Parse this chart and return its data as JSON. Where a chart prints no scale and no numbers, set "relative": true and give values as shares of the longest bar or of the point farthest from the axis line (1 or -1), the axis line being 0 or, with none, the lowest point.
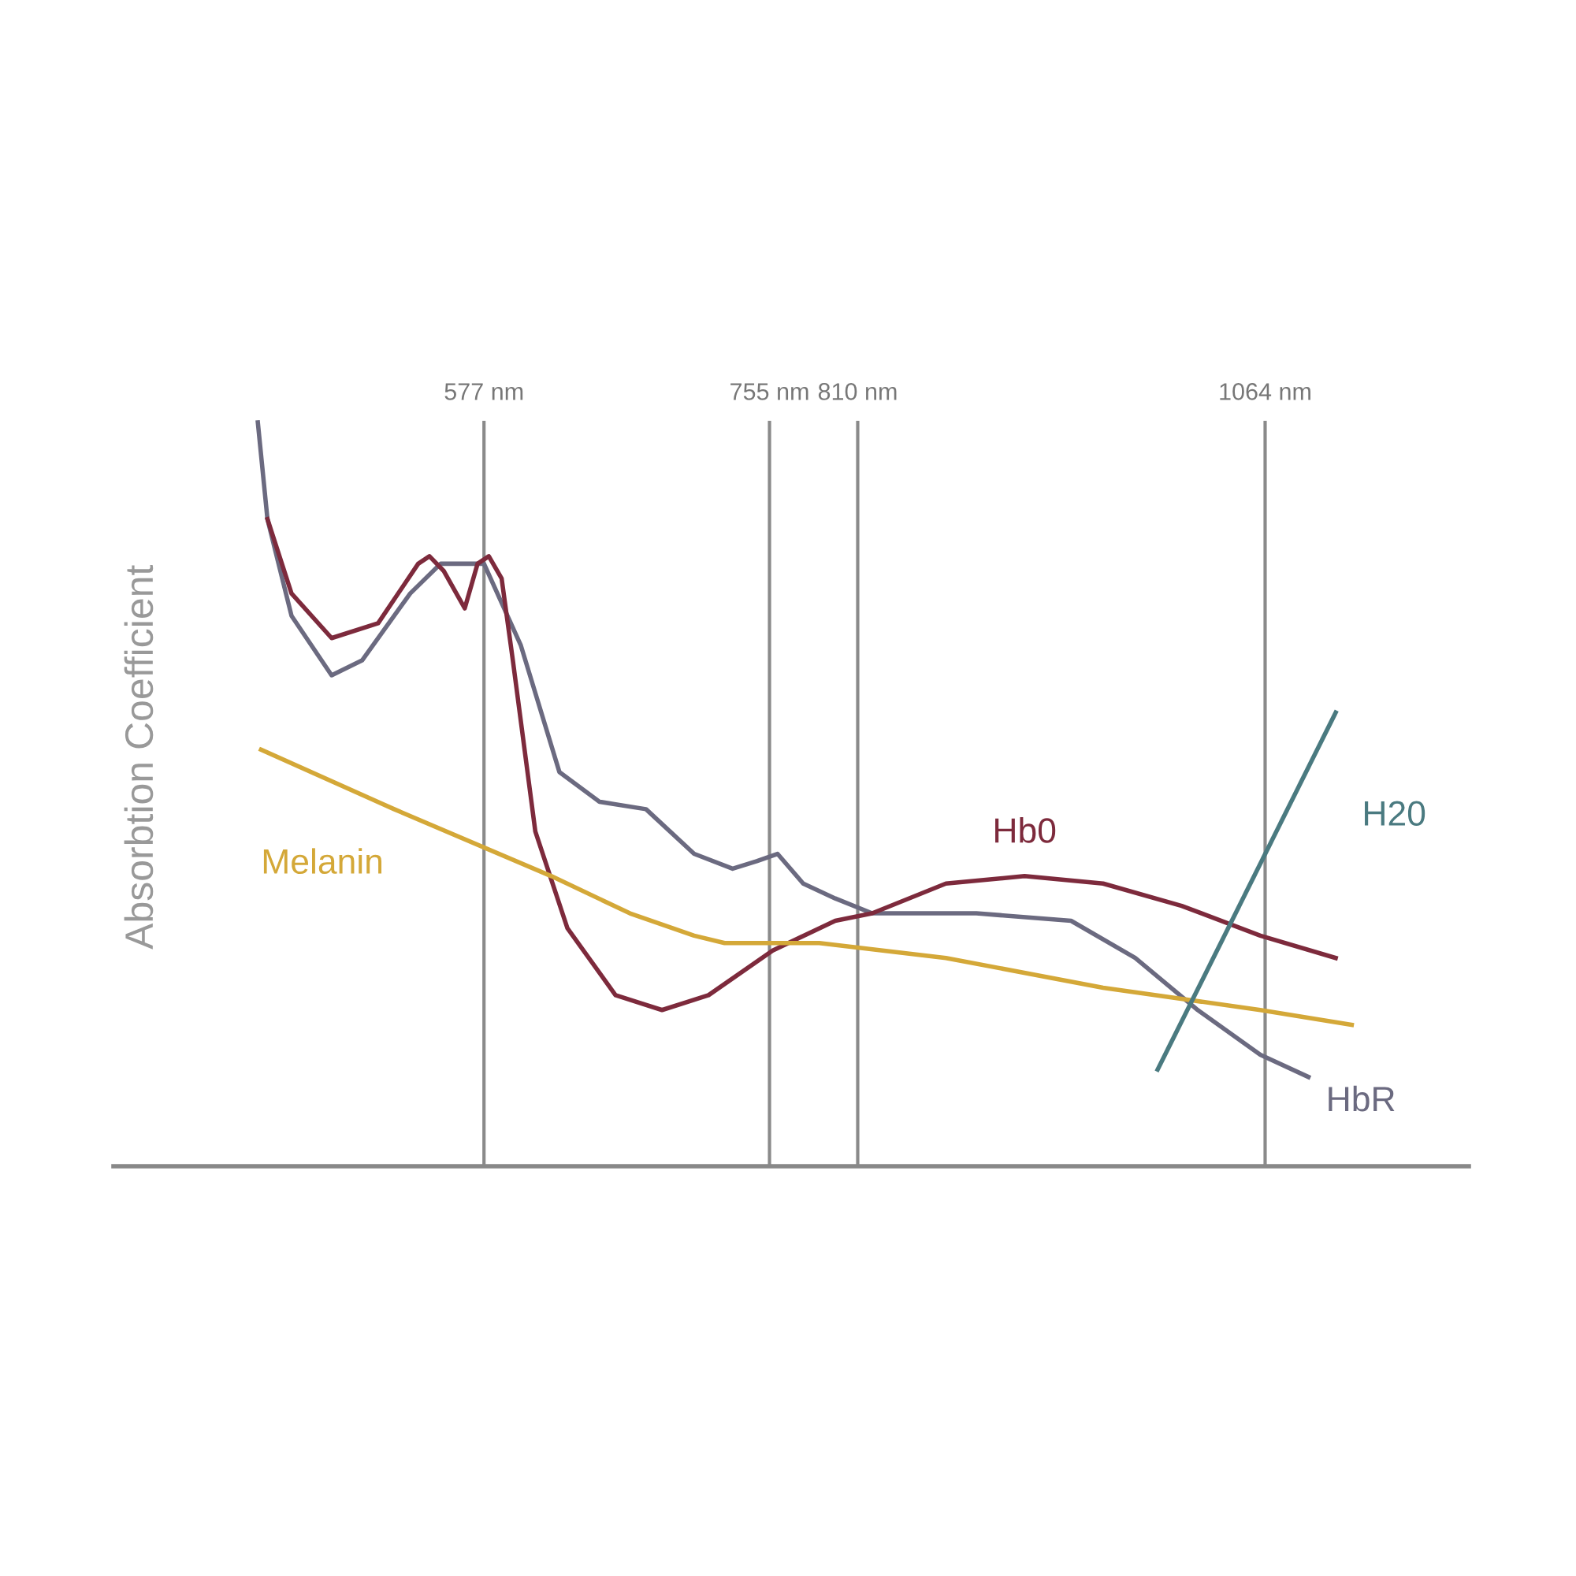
{
  "chart_data": {
    "type": "line",
    "relative": true,
    "ylabel": "Absorbtion Coefficient",
    "xlim": [
      346,
      1191
    ],
    "xticks": [
      {
        "value": 577,
        "label": "577 nm"
      },
      {
        "value": 755,
        "label": "755 nm"
      },
      {
        "value": 810,
        "label": "810 nm"
      },
      {
        "value": 1064,
        "label": "1064 nm"
      }
    ],
    "tick_labels": "x",
    "legend": false,
    "series": [
      {
        "name": "HbR",
        "color": "#6b6a80",
        "x": [
          436,
          442,
          457,
          482,
          501,
          531,
          550,
          577,
          600,
          624,
          649,
          678,
          708,
          732,
          747,
          760,
          776,
          796,
          819,
          840,
          884,
          943,
          983,
          1022,
          1061,
          1091
        ],
        "values": [
          1.0,
          0.87,
          0.74,
          0.66,
          0.68,
          0.77,
          0.81,
          0.81,
          0.7,
          0.53,
          0.49,
          0.48,
          0.42,
          0.4,
          0.41,
          0.42,
          0.38,
          0.36,
          0.34,
          0.34,
          0.34,
          0.33,
          0.28,
          0.21,
          0.15,
          0.12
        ]
      },
      {
        "name": "Hb0",
        "color": "#7d2a3c",
        "x": [
          442,
          457,
          482,
          511,
          536,
          543,
          552,
          565,
          573,
          580,
          588,
          595,
          609,
          629,
          659,
          688,
          717,
          757,
          796,
          819,
          865,
          914,
          963,
          1012,
          1061,
          1108
        ],
        "values": [
          0.87,
          0.77,
          0.71,
          0.73,
          0.81,
          0.82,
          0.8,
          0.75,
          0.81,
          0.82,
          0.79,
          0.68,
          0.45,
          0.32,
          0.23,
          0.21,
          0.23,
          0.29,
          0.33,
          0.34,
          0.38,
          0.39,
          0.38,
          0.35,
          0.31,
          0.28
        ]
      },
      {
        "name": "Melanin",
        "color": "#d4a838",
        "x": [
          438,
          521,
          619,
          668,
          708,
          727,
          786,
          865,
          963,
          1061,
          1118
        ],
        "values": [
          0.56,
          0.48,
          0.39,
          0.34,
          0.31,
          0.3,
          0.3,
          0.28,
          0.24,
          0.21,
          0.19
        ]
      },
      {
        "name": "H20",
        "color": "#4a7a80",
        "x": [
          997,
          1108
        ],
        "values": [
          0.13,
          0.61
        ]
      }
    ],
    "ref_lines": [
      {
        "axis": "x",
        "value": 577,
        "color": "#8a8a8a"
      },
      {
        "axis": "x",
        "value": 755,
        "color": "#8a8a8a"
      },
      {
        "axis": "x",
        "value": 810,
        "color": "#8a8a8a"
      },
      {
        "axis": "x",
        "value": 1064,
        "color": "#8a8a8a"
      }
    ]
  }
}
